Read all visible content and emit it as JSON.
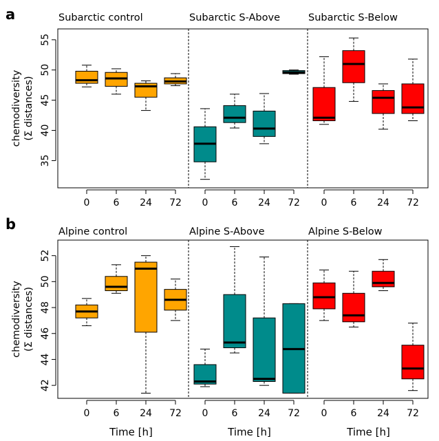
{
  "chart_data": [
    {
      "panel": "a",
      "type": "boxplot",
      "ylabel": [
        "chemodiversity",
        "(Σ distances)"
      ],
      "ylim": [
        30.5,
        56.8
      ],
      "yticks": [
        35,
        40,
        45,
        50,
        55
      ],
      "xticklabels": [
        "0",
        "6",
        "24",
        "72"
      ],
      "xlabel": "",
      "groups": [
        {
          "title": "Subarctic control",
          "color": "#FFA500",
          "boxes": [
            {
              "x": "0",
              "min": 47.2,
              "q1": 47.8,
              "median": 48.3,
              "q3": 49.8,
              "max": 50.8
            },
            {
              "x": "6",
              "min": 46.0,
              "q1": 47.3,
              "median": 48.6,
              "q3": 49.6,
              "max": 50.2
            },
            {
              "x": "24",
              "min": 43.3,
              "q1": 45.5,
              "median": 47.3,
              "q3": 47.8,
              "max": 48.2
            },
            {
              "x": "72",
              "min": 47.4,
              "q1": 47.7,
              "median": 48.1,
              "q3": 48.7,
              "max": 49.4
            }
          ]
        },
        {
          "title": "Subarctic S-Above",
          "color": "#008B8B",
          "boxes": [
            {
              "x": "0",
              "min": 31.9,
              "q1": 34.8,
              "median": 37.8,
              "q3": 40.6,
              "max": 43.6
            },
            {
              "x": "6",
              "min": 40.4,
              "q1": 41.3,
              "median": 42.1,
              "q3": 44.1,
              "max": 46.0
            },
            {
              "x": "24",
              "min": 37.8,
              "q1": 39.0,
              "median": 40.3,
              "q3": 43.2,
              "max": 46.1
            },
            {
              "x": "72",
              "min": 49.3,
              "q1": 49.4,
              "median": 49.6,
              "q3": 49.9,
              "max": 50.0
            }
          ]
        },
        {
          "title": "Subarctic S-Below",
          "color": "#FF0000",
          "boxes": [
            {
              "x": "0",
              "min": 41.0,
              "q1": 41.6,
              "median": 42.1,
              "q3": 47.1,
              "max": 52.2
            },
            {
              "x": "6",
              "min": 44.8,
              "q1": 47.9,
              "median": 51.0,
              "q3": 53.2,
              "max": 55.3
            },
            {
              "x": "24",
              "min": 40.2,
              "q1": 42.8,
              "median": 45.4,
              "q3": 46.6,
              "max": 47.7
            },
            {
              "x": "72",
              "min": 41.6,
              "q1": 42.8,
              "median": 43.8,
              "q3": 47.7,
              "max": 51.8
            }
          ]
        }
      ]
    },
    {
      "panel": "b",
      "type": "boxplot",
      "ylabel": [
        "chemodiversity",
        "(Σ distances)"
      ],
      "ylim": [
        41.0,
        53.2
      ],
      "yticks": [
        42,
        44,
        46,
        48,
        50,
        52
      ],
      "xticklabels": [
        "0",
        "6",
        "24",
        "72"
      ],
      "xlabel": "Time [h]",
      "groups": [
        {
          "title": "Alpine control",
          "color": "#FFA500",
          "boxes": [
            {
              "x": "0",
              "min": 46.6,
              "q1": 47.2,
              "median": 47.7,
              "q3": 48.2,
              "max": 48.7
            },
            {
              "x": "6",
              "min": 49.1,
              "q1": 49.3,
              "median": 49.6,
              "q3": 50.4,
              "max": 51.3
            },
            {
              "x": "24",
              "min": 41.4,
              "q1": 46.1,
              "median": 51.0,
              "q3": 51.5,
              "max": 52.0
            },
            {
              "x": "72",
              "min": 47.0,
              "q1": 47.8,
              "median": 48.6,
              "q3": 49.4,
              "max": 50.2
            }
          ]
        },
        {
          "title": "Alpine S-Above",
          "color": "#008B8B",
          "boxes": [
            {
              "x": "0",
              "min": 41.9,
              "q1": 42.1,
              "median": 42.3,
              "q3": 43.6,
              "max": 44.8
            },
            {
              "x": "6",
              "min": 44.5,
              "q1": 44.9,
              "median": 45.3,
              "q3": 49.0,
              "max": 52.7
            },
            {
              "x": "24",
              "min": 42.0,
              "q1": 42.3,
              "median": 42.5,
              "q3": 47.2,
              "max": 51.9
            },
            {
              "x": "72",
              "min": 41.4,
              "q1": 41.4,
              "median": 44.8,
              "q3": 48.3,
              "max": 48.3
            }
          ]
        },
        {
          "title": "Alpine S-Below",
          "color": "#FF0000",
          "boxes": [
            {
              "x": "0",
              "min": 47.0,
              "q1": 47.9,
              "median": 48.8,
              "q3": 49.9,
              "max": 50.9
            },
            {
              "x": "6",
              "min": 46.5,
              "q1": 46.9,
              "median": 47.4,
              "q3": 49.1,
              "max": 50.8
            },
            {
              "x": "24",
              "min": 49.3,
              "q1": 49.6,
              "median": 49.9,
              "q3": 50.8,
              "max": 51.7
            },
            {
              "x": "72",
              "min": 41.6,
              "q1": 42.5,
              "median": 43.3,
              "q3": 45.1,
              "max": 46.8
            }
          ]
        }
      ]
    }
  ]
}
